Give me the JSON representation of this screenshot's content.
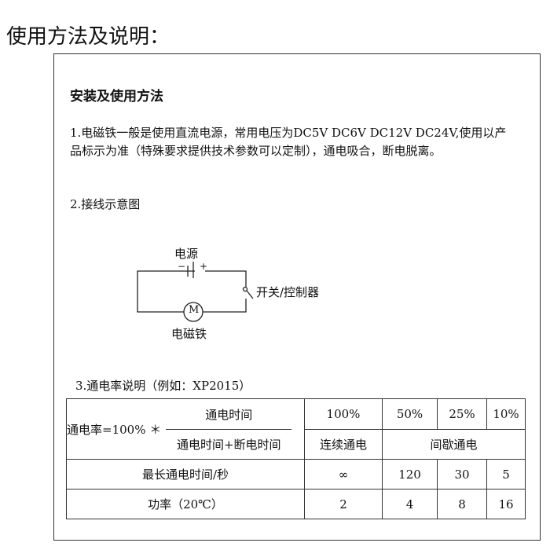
{
  "title": "使用方法及说明：",
  "section_heading": "安装及使用方法",
  "para1": "1.电磁铁一般是使用直流电源，常用电压为DC5V DC6V DC12V DC24V,使用以产品标示为准（特殊要求提供技术参数可以定制），通电吸合，断电脱离。",
  "para2": "2.接线示意图",
  "diagram": {
    "power": "电源",
    "minus": "−",
    "plus": "+",
    "switch": "开关/控制器",
    "motor_symbol": "M",
    "magnet": "电磁铁"
  },
  "para3": "3.通电率说明（例如：XP2015）",
  "table": {
    "formula_prefix": "通电率=100% ＊",
    "numerator": "通电时间",
    "denominator": "通电时间+断电时间",
    "rates": [
      "100%",
      "50%",
      "25%",
      "10%"
    ],
    "continuous": "连续通电",
    "intermittent": "间歇通电",
    "rows": [
      {
        "label": "最长通电时间/秒",
        "values": [
          "∞",
          "120",
          "30",
          "5"
        ]
      },
      {
        "label": "功率（20℃）",
        "values": [
          "2",
          "4",
          "8",
          "16"
        ]
      }
    ]
  }
}
